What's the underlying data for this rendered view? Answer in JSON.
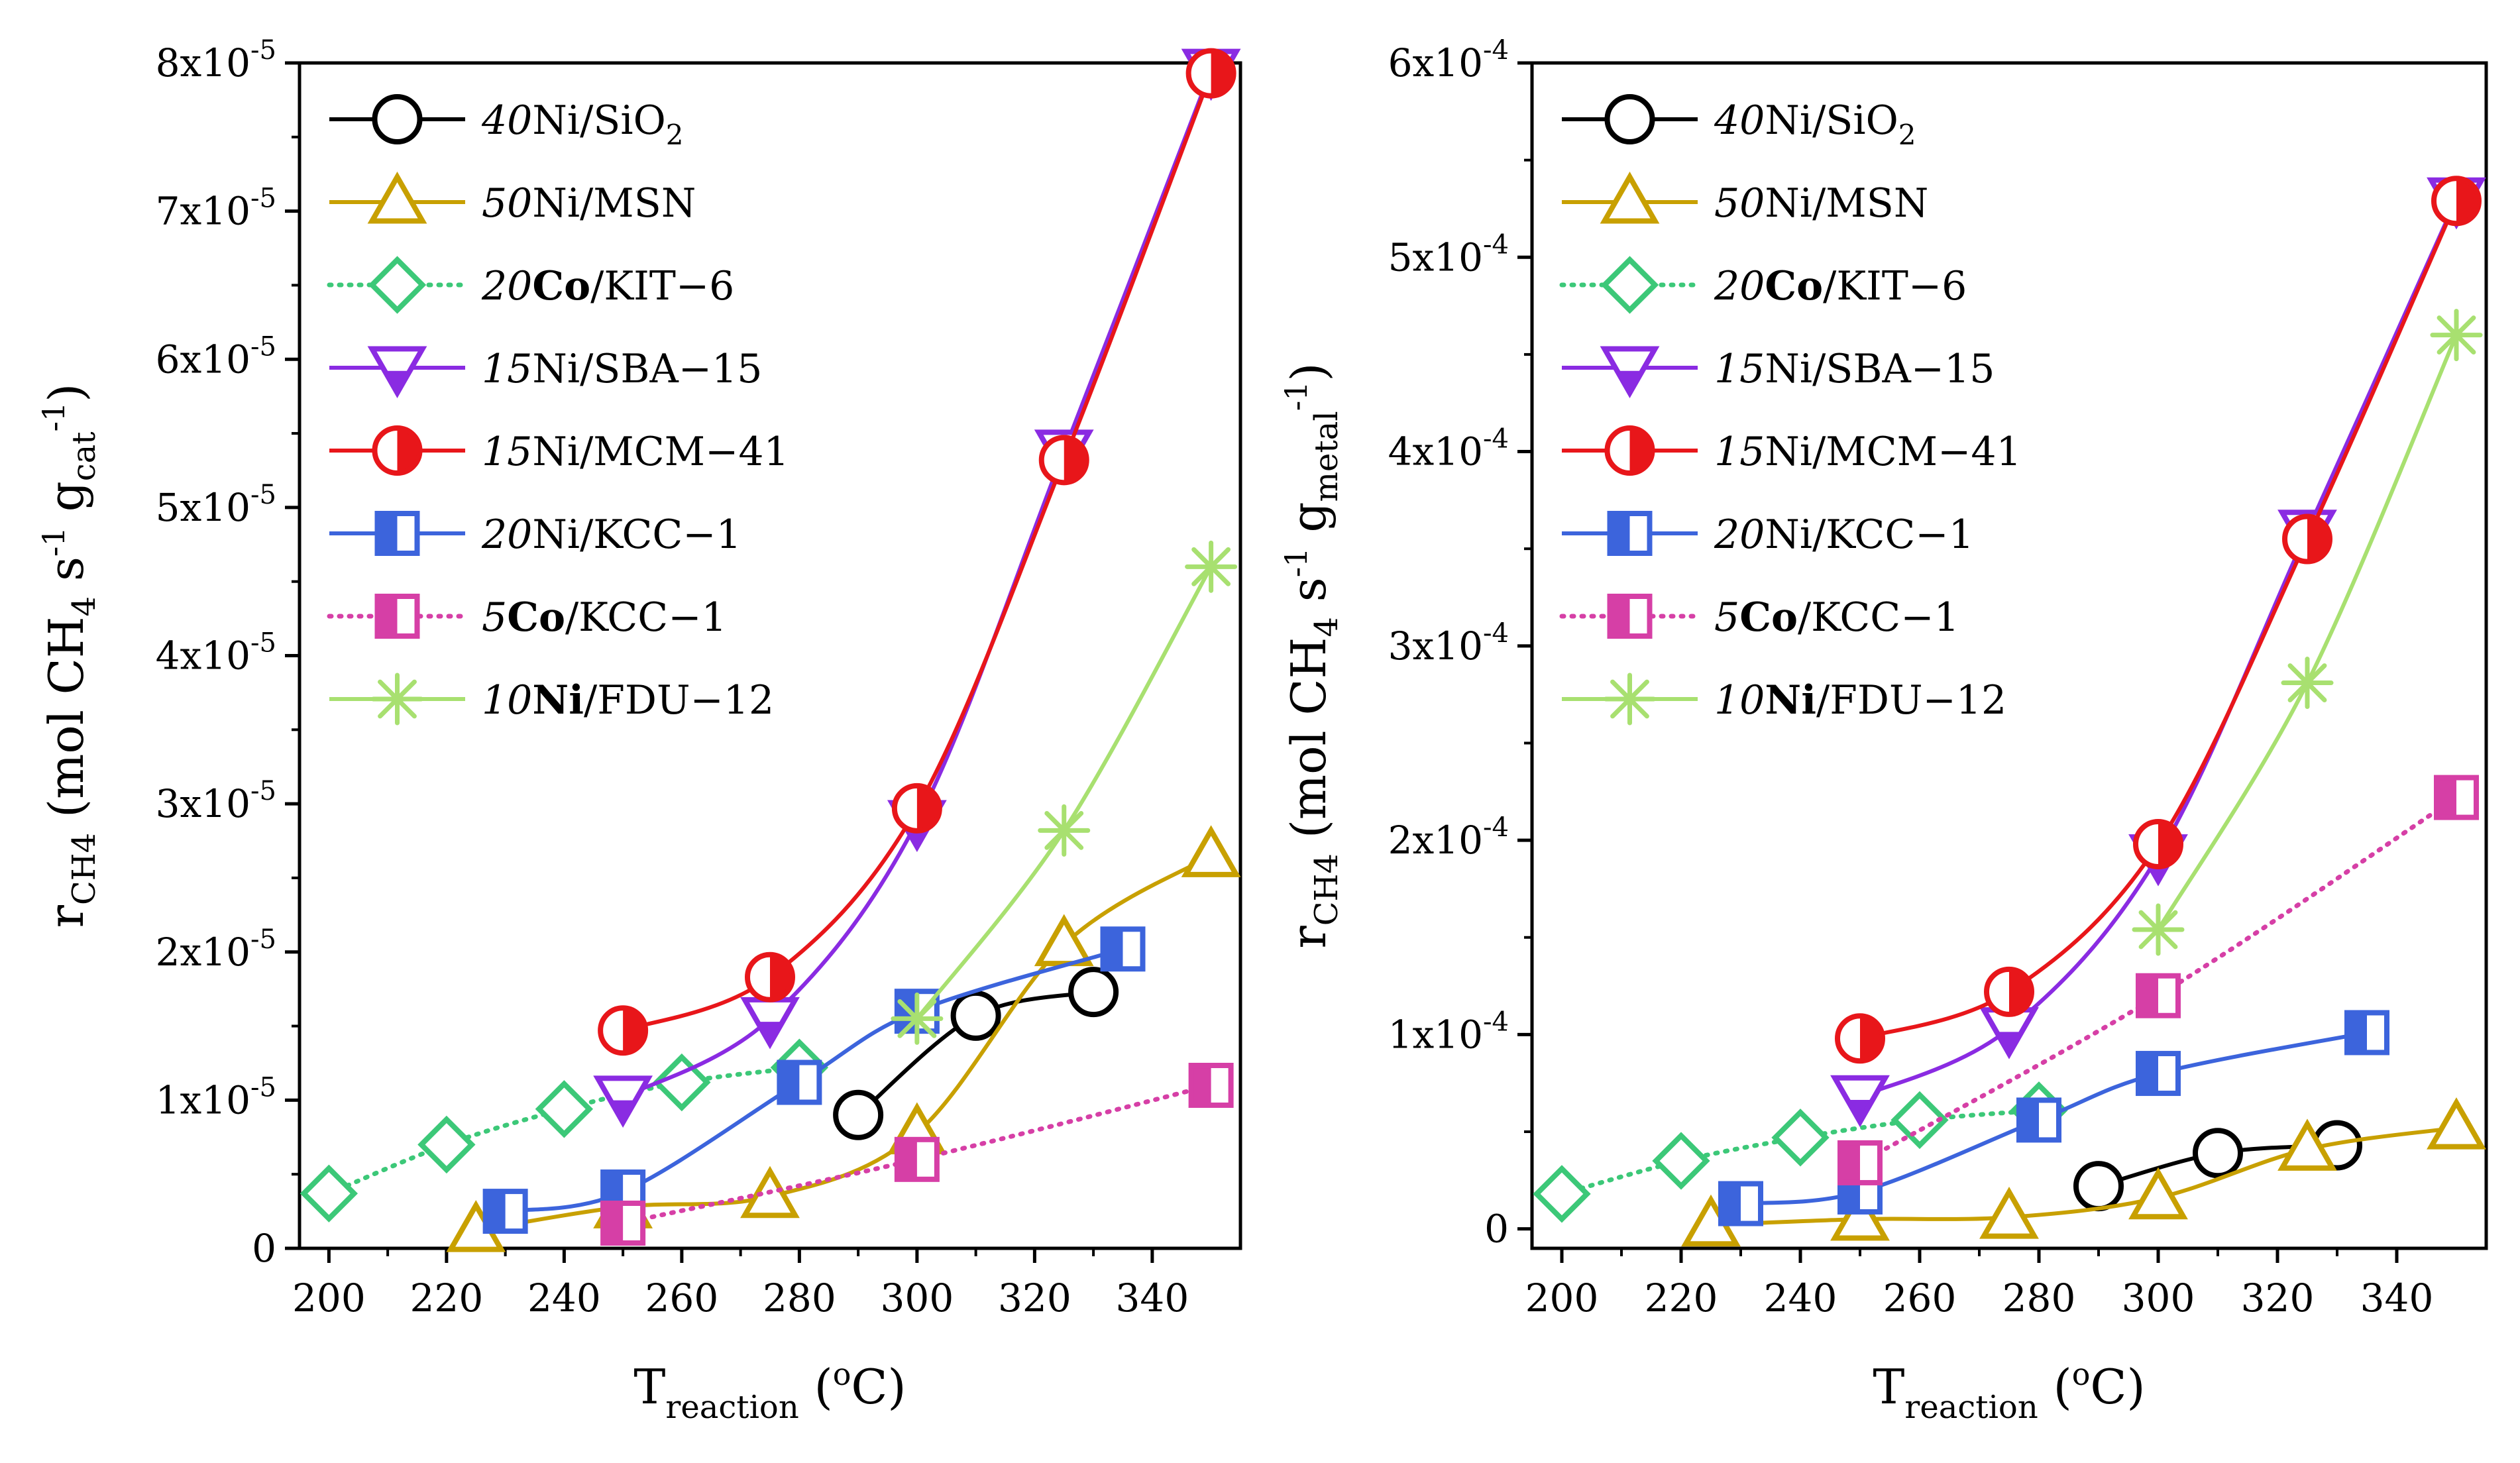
{
  "chart_data": [
    {
      "type": "line",
      "xlabel": "T_reaction (°C)",
      "ylabel": "r_CH4 (mol CH4 s^-1 g_cat^-1)",
      "xlim": [
        195,
        355
      ],
      "ylim": [
        0,
        8e-05
      ],
      "x_ticks": [
        200,
        220,
        240,
        260,
        280,
        300,
        320,
        340
      ],
      "y_ticks": [
        0,
        1e-05,
        2e-05,
        3e-05,
        4e-05,
        5e-05,
        6e-05,
        7e-05,
        8e-05
      ],
      "y_tick_labels": [
        {
          "text": "0",
          "exp": ""
        },
        {
          "text": "1x10",
          "exp": "-5"
        },
        {
          "text": "2x10",
          "exp": "-5"
        },
        {
          "text": "3x10",
          "exp": "-5"
        },
        {
          "text": "4x10",
          "exp": "-5"
        },
        {
          "text": "5x10",
          "exp": "-5"
        },
        {
          "text": "6x10",
          "exp": "-5"
        },
        {
          "text": "7x10",
          "exp": "-5"
        },
        {
          "text": "8x10",
          "exp": "-5"
        }
      ],
      "grid": false,
      "legend_position": "top-left",
      "series": [
        {
          "name": "40Ni/SiO2",
          "color": "#000000",
          "marker": "circle-open",
          "dash": "solid",
          "x": [
            290,
            310,
            330
          ],
          "y": [
            9e-06,
            1.57e-05,
            1.73e-05
          ]
        },
        {
          "name": "50Ni/MSN",
          "color": "#C8A000",
          "marker": "triangle-up-open",
          "dash": "solid",
          "x": [
            225,
            250,
            275,
            300,
            325,
            350
          ],
          "y": [
            1.2e-06,
            2.8e-06,
            3.5e-06,
            7.8e-06,
            2.05e-05,
            2.65e-05
          ]
        },
        {
          "name": "20Co/KIT-6",
          "color": "#3CC878",
          "marker": "diamond-open",
          "dash": "dot",
          "x": [
            200,
            220,
            240,
            260,
            280
          ],
          "y": [
            3.7e-06,
            7e-06,
            9.4e-06,
            1.12e-05,
            1.22e-05
          ]
        },
        {
          "name": "15Ni/SBA-15",
          "color": "#8A2BE2",
          "marker": "triangle-down-half",
          "dash": "solid",
          "x": [
            250,
            275,
            300,
            325,
            350
          ],
          "y": [
            1.02e-05,
            1.55e-05,
            2.88e-05,
            5.38e-05,
            7.95e-05
          ]
        },
        {
          "name": "15Ni/MCM-41",
          "color": "#E8161A",
          "marker": "circle-half",
          "dash": "solid",
          "x": [
            250,
            275,
            300,
            325,
            350
          ],
          "y": [
            1.47e-05,
            1.83e-05,
            2.97e-05,
            5.32e-05,
            7.93e-05
          ]
        },
        {
          "name": "20Ni/KCC-1",
          "color": "#3C64DC",
          "marker": "square-half",
          "dash": "solid",
          "x": [
            230,
            250,
            280,
            300,
            335
          ],
          "y": [
            2.5e-06,
            3.8e-06,
            1.12e-05,
            1.6e-05,
            2.02e-05
          ]
        },
        {
          "name": "5Co/KCC-1",
          "color": "#D63FA6",
          "marker": "square-half",
          "dash": "dot",
          "x": [
            250,
            300,
            350
          ],
          "y": [
            1.7e-06,
            6e-06,
            1.1e-05
          ]
        },
        {
          "name": "10Ni/FDU-12",
          "color": "#A8E070",
          "marker": "asterisk",
          "dash": "solid",
          "x": [
            300,
            325,
            350
          ],
          "y": [
            1.55e-05,
            2.82e-05,
            4.6e-05
          ]
        }
      ]
    },
    {
      "type": "line",
      "xlabel": "T_reaction (°C)",
      "ylabel": "r_CH4 (mol CH4 s^-1 g_metal^-1)",
      "xlim": [
        195,
        355
      ],
      "ylim": [
        -1e-05,
        0.0006
      ],
      "x_ticks": [
        200,
        220,
        240,
        260,
        280,
        300,
        320,
        340
      ],
      "y_ticks": [
        0,
        0.0001,
        0.0002,
        0.0003,
        0.0004,
        0.0005,
        0.0006
      ],
      "y_tick_labels": [
        {
          "text": "0",
          "exp": ""
        },
        {
          "text": "1x10",
          "exp": "-4"
        },
        {
          "text": "2x10",
          "exp": "-4"
        },
        {
          "text": "3x10",
          "exp": "-4"
        },
        {
          "text": "4x10",
          "exp": "-4"
        },
        {
          "text": "5x10",
          "exp": "-4"
        },
        {
          "text": "6x10",
          "exp": "-4"
        }
      ],
      "grid": false,
      "legend_position": "top-left",
      "series": [
        {
          "name": "40Ni/SiO2",
          "color": "#000000",
          "marker": "circle-open",
          "dash": "solid",
          "x": [
            290,
            310,
            330
          ],
          "y": [
            2.2e-05,
            3.9e-05,
            4.3e-05
          ]
        },
        {
          "name": "50Ni/MSN",
          "color": "#C8A000",
          "marker": "triangle-up-open",
          "dash": "solid",
          "x": [
            225,
            250,
            275,
            300,
            325,
            350
          ],
          "y": [
            2e-06,
            5e-06,
            6e-06,
            1.6e-05,
            4.1e-05,
            5.2e-05
          ]
        },
        {
          "name": "20Co/KIT-6",
          "color": "#3CC878",
          "marker": "diamond-open",
          "dash": "dot",
          "x": [
            200,
            220,
            240,
            260,
            280
          ],
          "y": [
            1.8e-05,
            3.5e-05,
            4.7e-05,
            5.6e-05,
            6.1e-05
          ]
        },
        {
          "name": "15Ni/SBA-15",
          "color": "#8A2BE2",
          "marker": "triangle-down-half",
          "dash": "solid",
          "x": [
            250,
            275,
            300,
            325,
            350
          ],
          "y": [
            6.8e-05,
            0.000103,
            0.000192,
            0.000359,
            0.00053
          ]
        },
        {
          "name": "15Ni/MCM-41",
          "color": "#E8161A",
          "marker": "circle-half",
          "dash": "solid",
          "x": [
            250,
            275,
            300,
            325,
            350
          ],
          "y": [
            9.8e-05,
            0.000122,
            0.000198,
            0.000355,
            0.000529
          ]
        },
        {
          "name": "20Ni/KCC-1",
          "color": "#3C64DC",
          "marker": "square-half",
          "dash": "solid",
          "x": [
            230,
            250,
            280,
            300,
            335
          ],
          "y": [
            1.3e-05,
            1.9e-05,
            5.6e-05,
            8e-05,
            0.000101
          ]
        },
        {
          "name": "5Co/KCC-1",
          "color": "#D63FA6",
          "marker": "square-half",
          "dash": "dot",
          "x": [
            250,
            300,
            350
          ],
          "y": [
            3.4e-05,
            0.00012,
            0.000222
          ]
        },
        {
          "name": "10Ni/FDU-12",
          "color": "#A8E070",
          "marker": "asterisk",
          "dash": "solid",
          "x": [
            300,
            325,
            350
          ],
          "y": [
            0.000154,
            0.000281,
            0.00046
          ]
        }
      ]
    }
  ],
  "legend_labels": [
    {
      "num": "40",
      "metal": "Ni",
      "bold": false,
      "support": "/SiO",
      "sub": "2"
    },
    {
      "num": "50",
      "metal": "Ni",
      "bold": false,
      "support": "/MSN",
      "sub": ""
    },
    {
      "num": "20",
      "metal": "Co",
      "bold": true,
      "support": "/KIT−6",
      "sub": ""
    },
    {
      "num": "15",
      "metal": "Ni",
      "bold": false,
      "support": "/SBA−15",
      "sub": ""
    },
    {
      "num": "15",
      "metal": "Ni",
      "bold": false,
      "support": "/MCM−41",
      "sub": ""
    },
    {
      "num": "20",
      "metal": "Ni",
      "bold": false,
      "support": "/KCC−1",
      "sub": ""
    },
    {
      "num": "5",
      "metal": "Co",
      "bold": true,
      "support": "/KCC−1",
      "sub": ""
    },
    {
      "num": "10",
      "metal": "Ni",
      "bold": true,
      "support": "/FDU−12",
      "sub": ""
    }
  ],
  "axis_titles": {
    "x": {
      "main": "T",
      "sub": "reaction",
      "unit_open": " (",
      "deg": "o",
      "unit_close": "C)"
    },
    "y_left": {
      "main": "r",
      "sub": "CH4",
      "text1": " (mol CH",
      "sub2": "4",
      "text2": " s",
      "sup1": "-1",
      "text3": " g",
      "sub3": "cat",
      "sup2": "-1",
      "close": ")"
    },
    "y_right": {
      "main": "r",
      "sub": "CH4",
      "text1": " (mol CH",
      "sub2": "4",
      "text2": " s",
      "sup1": "-1",
      "text3": " g",
      "sub3": "metal",
      "sup2": "-1",
      "close": ")"
    }
  }
}
